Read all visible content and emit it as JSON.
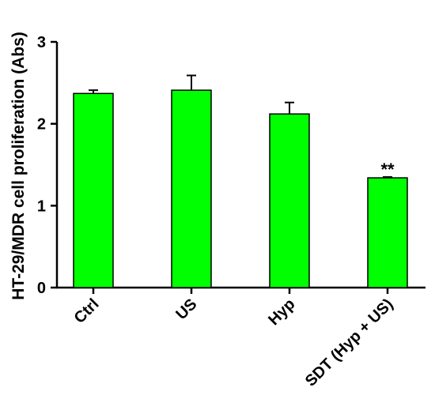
{
  "chart_data": {
    "type": "bar",
    "title": "",
    "xlabel": "",
    "ylabel": "HT-29/MDR cell proliferation (Abs)",
    "categories": [
      "Ctrl",
      "US",
      "Hyp",
      "SDT (Hyp + US)"
    ],
    "values": [
      2.37,
      2.41,
      2.12,
      1.34
    ],
    "error": [
      0.04,
      0.18,
      0.14,
      0.01
    ],
    "annotations": [
      "",
      "",
      "",
      "**"
    ],
    "ylim": [
      0,
      3
    ],
    "yticks": [
      0,
      1,
      2,
      3
    ],
    "bar_color": "#00ff00",
    "grid": false,
    "legend": "none"
  }
}
